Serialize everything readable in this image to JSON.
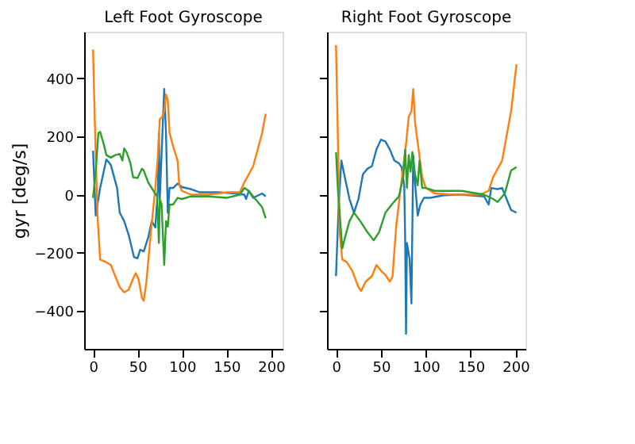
{
  "chart_data": [
    {
      "type": "line",
      "title": "Left Foot Gyroscope",
      "ylabel": "gyr [deg/s]",
      "xlim": [
        -10,
        213
      ],
      "ylim": [
        -530,
        560
      ],
      "xticks": [
        0,
        50,
        100,
        150,
        200
      ],
      "yticks": [
        -400,
        -200,
        0,
        200,
        400
      ],
      "grid": false,
      "legend": false,
      "series": [
        {
          "color": "#1f77b4",
          "x": [
            0,
            3,
            8,
            15,
            20,
            27,
            30,
            35,
            40,
            46,
            50,
            53,
            57,
            62,
            66,
            70,
            73,
            74,
            75,
            77,
            80,
            82,
            84,
            86,
            90,
            95,
            100,
            110,
            120,
            140,
            160,
            170,
            172,
            175,
            180,
            190,
            194
          ],
          "values": [
            151,
            -72,
            23,
            121,
            102,
            23,
            -62,
            -91,
            -138,
            -214,
            -219,
            -189,
            -195,
            -147,
            -91,
            -113,
            23,
            212,
            -15,
            136,
            363,
            212,
            -62,
            23,
            23,
            38,
            26,
            19,
            8,
            8,
            4,
            0,
            -15,
            13,
            -11,
            4,
            -6
          ]
        },
        {
          "color": "#ff7f0e",
          "x": [
            0,
            2,
            5,
            8,
            15,
            20,
            25,
            30,
            35,
            40,
            45,
            48,
            51,
            55,
            57,
            60,
            65,
            70,
            73,
            75,
            78,
            80,
            82,
            84,
            86,
            90,
            95,
            97,
            100,
            110,
            130,
            150,
            165,
            170,
            180,
            190,
            194
          ],
          "values": [
            499,
            250,
            -72,
            -223,
            -232,
            -242,
            -280,
            -318,
            -336,
            -327,
            -289,
            -270,
            -289,
            -355,
            -365,
            -299,
            -129,
            23,
            136,
            259,
            269,
            287,
            344,
            325,
            212,
            166,
            117,
            32,
            13,
            0,
            0,
            8,
            8,
            42,
            98,
            212,
            278
          ]
        },
        {
          "color": "#2ca02c",
          "x": [
            0,
            3,
            6,
            8,
            12,
            15,
            20,
            25,
            30,
            33,
            35,
            38,
            42,
            45,
            50,
            55,
            57,
            62,
            68,
            72,
            74,
            75,
            77,
            80,
            82,
            84,
            86,
            90,
            95,
            100,
            110,
            130,
            150,
            165,
            170,
            175,
            180,
            190,
            194
          ],
          "values": [
            -11,
            79,
            212,
            216,
            174,
            136,
            127,
            136,
            140,
            117,
            159,
            144,
            108,
            60,
            57,
            89,
            83,
            42,
            13,
            -6,
            -166,
            -15,
            -34,
            -242,
            -91,
            -110,
            -34,
            -34,
            -11,
            -15,
            -6,
            -6,
            -11,
            0,
            23,
            13,
            -6,
            -43,
            -81
          ]
        }
      ]
    },
    {
      "type": "line",
      "title": "Right Foot Gyroscope",
      "xlim": [
        -10,
        211
      ],
      "ylim": [
        -530,
        560
      ],
      "xticks": [
        0,
        50,
        100,
        150,
        200
      ],
      "yticks": [
        -400,
        -200,
        0,
        200,
        400
      ],
      "tick_labels": "x",
      "grid": false,
      "legend": false,
      "series": [
        {
          "color": "#1f77b4",
          "x": [
            0,
            3,
            6,
            10,
            15,
            20,
            25,
            30,
            35,
            40,
            45,
            50,
            55,
            60,
            65,
            70,
            73,
            76,
            77,
            78,
            79,
            82,
            84,
            86,
            88,
            91,
            94,
            98,
            105,
            120,
            140,
            165,
            170,
            173,
            180,
            185,
            190,
            195,
            201
          ],
          "values": [
            -280,
            -34,
            117,
            57,
            -15,
            -62,
            -15,
            70,
            89,
            98,
            155,
            189,
            183,
            155,
            117,
            108,
            95,
            32,
            -147,
            -478,
            -166,
            -223,
            -374,
            136,
            42,
            -72,
            -34,
            -11,
            -11,
            -2,
            0,
            -6,
            -34,
            23,
            19,
            23,
            -15,
            -53,
            -62
          ]
        },
        {
          "color": "#ff7f0e",
          "x": [
            0,
            2,
            4,
            7,
            12,
            18,
            25,
            28,
            33,
            40,
            45,
            50,
            55,
            60,
            63,
            67,
            72,
            78,
            81,
            84,
            86,
            88,
            92,
            96,
            100,
            110,
            130,
            160,
            170,
            175,
            185,
            195,
            201
          ],
          "values": [
            514,
            212,
            -129,
            -223,
            -232,
            -261,
            -318,
            -331,
            -299,
            -280,
            -242,
            -261,
            -276,
            -299,
            -280,
            -110,
            23,
            174,
            268,
            287,
            363,
            249,
            155,
            60,
            23,
            4,
            0,
            0,
            13,
            60,
            117,
            287,
            448
          ]
        },
        {
          "color": "#2ca02c",
          "x": [
            0,
            2,
            7,
            10,
            15,
            20,
            27,
            35,
            42,
            48,
            55,
            62,
            70,
            75,
            77,
            79,
            81,
            83,
            85,
            88,
            91,
            93,
            96,
            100,
            110,
            140,
            165,
            175,
            180,
            188,
            195,
            201
          ],
          "values": [
            146,
            23,
            -185,
            -147,
            -91,
            -62,
            -91,
            -129,
            -157,
            -129,
            -62,
            -34,
            -6,
            60,
            155,
            23,
            136,
            79,
            146,
            70,
            32,
            117,
            23,
            23,
            13,
            13,
            0,
            -15,
            -25,
            4,
            83,
            95
          ]
        }
      ]
    }
  ]
}
